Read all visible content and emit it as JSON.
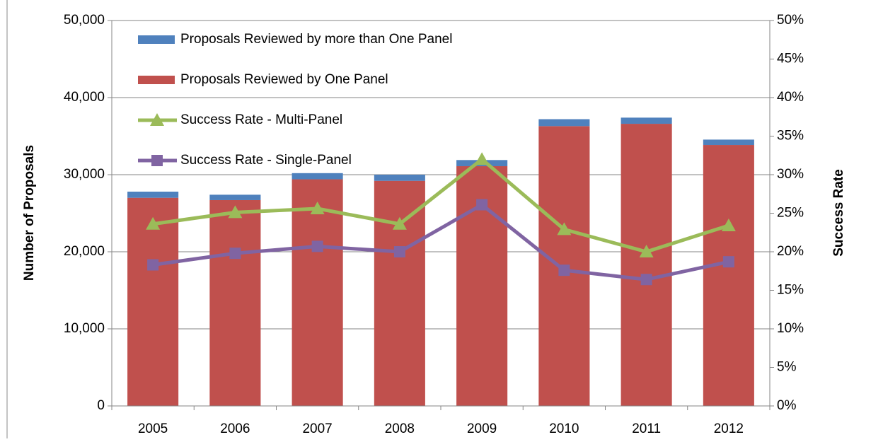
{
  "chart_data": {
    "type": "bar",
    "categories": [
      "2005",
      "2006",
      "2007",
      "2008",
      "2009",
      "2010",
      "2011",
      "2012"
    ],
    "series": [
      {
        "name": "Proposals Reviewed by more than One Panel",
        "type": "bar",
        "color": "#4f81bd",
        "values": [
          800,
          700,
          800,
          800,
          800,
          900,
          800,
          700
        ]
      },
      {
        "name": "Proposals Reviewed by One Panel",
        "type": "bar",
        "color": "#c0504d",
        "values": [
          27000,
          26700,
          29400,
          29200,
          31100,
          36300,
          36600,
          33850
        ]
      },
      {
        "name": "Success Rate - Multi-Panel",
        "type": "line",
        "axis": "y2",
        "marker": "triangle",
        "color": "#9bbb59",
        "values": [
          23.6,
          25.1,
          25.6,
          23.6,
          32.0,
          22.9,
          20.0,
          23.4
        ]
      },
      {
        "name": "Success Rate - Single-Panel",
        "type": "line",
        "axis": "y2",
        "marker": "square",
        "color": "#8064a2",
        "values": [
          18.3,
          19.8,
          20.7,
          20.0,
          26.1,
          17.6,
          16.4,
          18.7
        ]
      }
    ],
    "ylabel": "Number of Proposals",
    "y2label": "Success Rate",
    "ylim": [
      0,
      50000
    ],
    "yticks": [
      0,
      {
        "value": 10000,
        "label": "10,000"
      },
      {
        "value": 20000,
        "label": "20,000"
      },
      {
        "value": 30000,
        "label": "30,000"
      },
      {
        "value": 40000,
        "label": "40,000"
      },
      {
        "value": 50000,
        "label": "50,000"
      }
    ],
    "y2lim": [
      0,
      50
    ],
    "y2ticks": [
      {
        "value": 0,
        "label": "0%"
      },
      {
        "value": 5,
        "label": "5%"
      },
      {
        "value": 10,
        "label": "10%"
      },
      {
        "value": 15,
        "label": "15%"
      },
      {
        "value": 20,
        "label": "20%"
      },
      {
        "value": 25,
        "label": "25%"
      },
      {
        "value": 30,
        "label": "30%"
      },
      {
        "value": 35,
        "label": "35%"
      },
      {
        "value": 40,
        "label": "40%"
      },
      {
        "value": 45,
        "label": "45%"
      },
      {
        "value": 50,
        "label": "50%"
      }
    ],
    "grid": true,
    "legend": "top-left"
  }
}
